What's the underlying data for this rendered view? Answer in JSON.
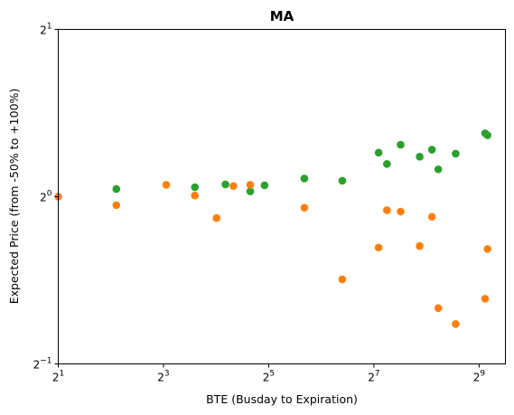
{
  "chart_data": {
    "type": "scatter",
    "title": "MA",
    "xlabel": "BTE (Busday to Expiration)",
    "ylabel": "Expected Price (from -50% to +100%)",
    "x_scale": "log2",
    "y_scale": "log2",
    "xlim": [
      2,
      724
    ],
    "ylim": [
      0.5,
      2
    ],
    "x_ticks": [
      {
        "value": 2,
        "base": "2",
        "exp": "1"
      },
      {
        "value": 8,
        "base": "2",
        "exp": "3"
      },
      {
        "value": 32,
        "base": "2",
        "exp": "5"
      },
      {
        "value": 128,
        "base": "2",
        "exp": "7"
      },
      {
        "value": 512,
        "base": "2",
        "exp": "9"
      }
    ],
    "y_ticks": [
      {
        "value": 0.5,
        "base": "2",
        "exp": "−1"
      },
      {
        "value": 1,
        "base": "2",
        "exp": "0"
      },
      {
        "value": 2,
        "base": "2",
        "exp": "1"
      }
    ],
    "grid": false,
    "legend": "none",
    "series": [
      {
        "color": "#2ca02c",
        "x": [
          4.3,
          12.1,
          18.1,
          25.1,
          30.3,
          51.2,
          84.4,
          136.2,
          152,
          182,
          234,
          275,
          299,
          376,
          554,
          572
        ],
        "y": [
          1.032,
          1.04,
          1.052,
          1.022,
          1.048,
          1.078,
          1.068,
          1.2,
          1.145,
          1.24,
          1.18,
          1.215,
          1.12,
          1.195,
          1.3,
          1.29
        ]
      },
      {
        "color": "#ff7f0e",
        "x": [
          2.0,
          4.3,
          8.3,
          12.1,
          16.1,
          20.1,
          25.1,
          51.2,
          84.4,
          136.2,
          152,
          182,
          234,
          275,
          299,
          376,
          554,
          572
        ],
        "y": [
          1.0,
          0.965,
          1.05,
          1.005,
          0.915,
          1.045,
          1.05,
          0.955,
          0.71,
          0.81,
          0.945,
          0.94,
          0.815,
          0.92,
          0.63,
          0.59,
          0.655,
          0.805
        ]
      }
    ]
  }
}
